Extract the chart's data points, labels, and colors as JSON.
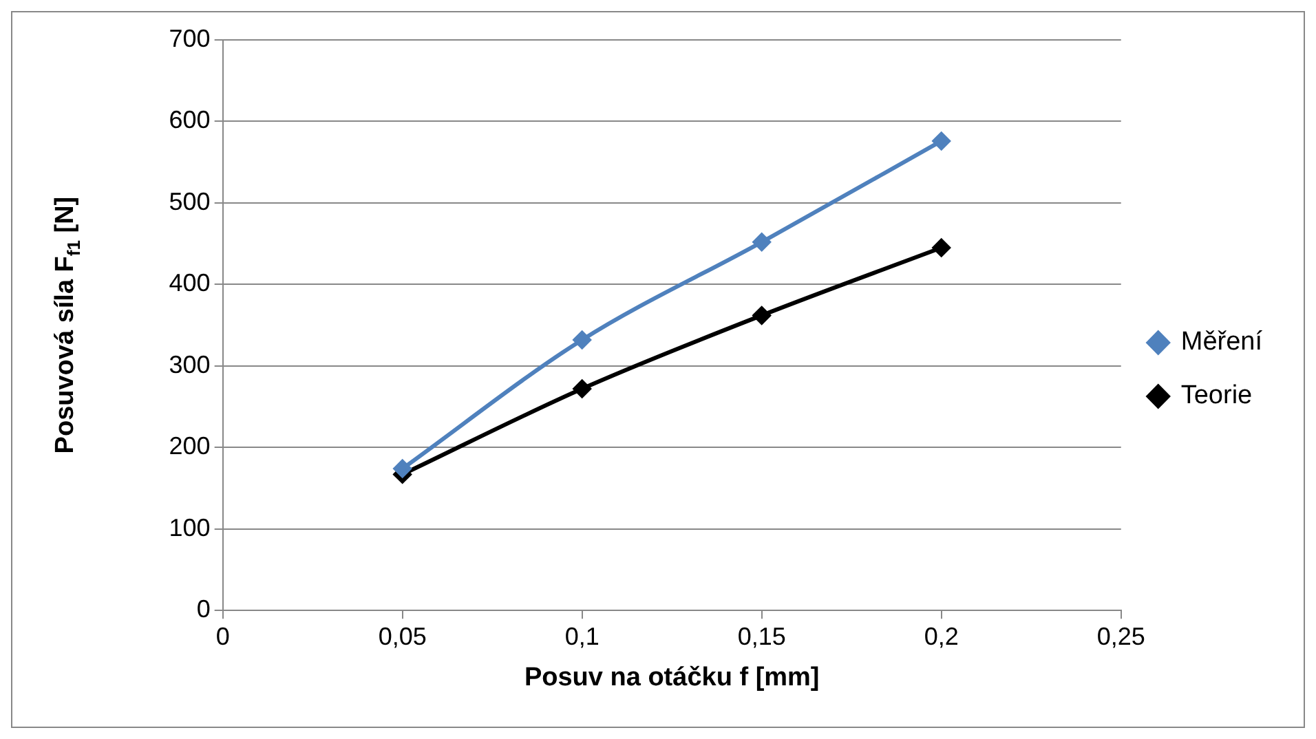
{
  "chart_data": {
    "type": "line",
    "xlabel": "Posuv na otáčku f [mm]",
    "ylabel": "Posuvová síla F$_{f1}$ [N]",
    "xlim": [
      0,
      0.25
    ],
    "xticks": [
      0,
      {
        "value": 0.05,
        "label": "0,05"
      },
      {
        "value": 0.1,
        "label": "0,1"
      },
      {
        "value": 0.15,
        "label": "0,15"
      },
      {
        "value": 0.2,
        "label": "0,2"
      },
      {
        "value": 0.25,
        "label": "0,25"
      }
    ],
    "ylim": [
      0,
      700
    ],
    "yticks": [
      0,
      100,
      200,
      300,
      400,
      500,
      600,
      700
    ],
    "grid": "y",
    "legend": "right",
    "marker": "diamond",
    "line_style": "solid",
    "series": [
      {
        "name": "Teorie",
        "color": "#000000",
        "x": [
          0.05,
          0.1,
          0.15,
          0.2
        ],
        "values": [
          167,
          272,
          362,
          445
        ]
      },
      {
        "name": "Měření",
        "color": "#4f81bd",
        "x": [
          0.05,
          0.1,
          0.15,
          0.2
        ],
        "values": [
          174,
          332,
          452,
          576
        ]
      }
    ]
  }
}
